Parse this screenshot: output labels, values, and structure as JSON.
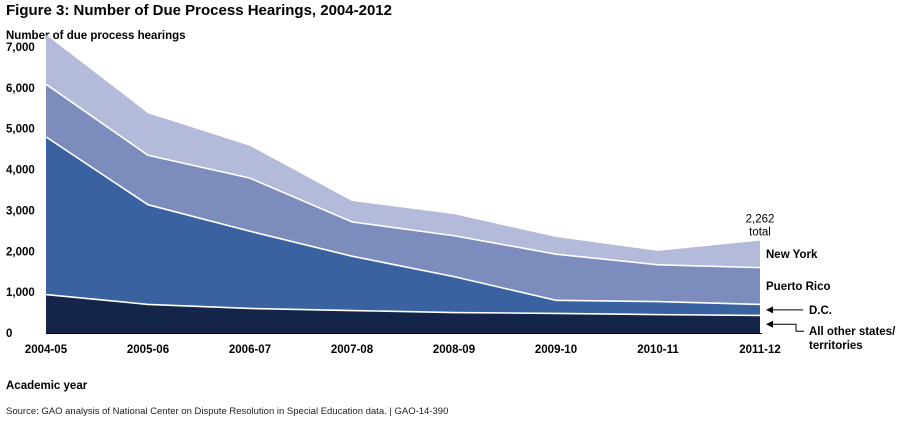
{
  "title": "Figure 3: Number of Due Process Hearings, 2004-2012",
  "source": "Source: GAO analysis of National Center on Dispute Resolution in Special Education data.  |  GAO-14-390",
  "colors": {
    "all_other": "#15254a",
    "dc": "#3a62a1",
    "puerto_rico": "#7b8cbd",
    "new_york": "#b4bad9",
    "boundary": "#ffffff",
    "arrow": "#000000"
  },
  "chart_data": {
    "type": "area",
    "stacked": true,
    "title": "Figure 3: Number of Due Process Hearings, 2004-2012",
    "ylabel": "Number of due process hearings",
    "xlabel": "Academic year",
    "ylim": [
      0,
      7000
    ],
    "yticks": [
      "0",
      "1,000",
      "2,000",
      "3,000",
      "4,000",
      "5,000",
      "6,000",
      "7,000"
    ],
    "ytick_values": [
      0,
      1000,
      2000,
      3000,
      4000,
      5000,
      6000,
      7000
    ],
    "categories": [
      "2004-05",
      "2005-06",
      "2006-07",
      "2007-08",
      "2008-09",
      "2009-10",
      "2010-11",
      "2011-12"
    ],
    "series": [
      {
        "name": "All other states/ territories",
        "name_lines": [
          "All other states/",
          "territories"
        ],
        "values": [
          940,
          700,
          600,
          550,
          500,
          480,
          450,
          430
        ]
      },
      {
        "name": "D.C.",
        "name_lines": [
          "D.C."
        ],
        "values": [
          3860,
          2440,
          1890,
          1330,
          880,
          320,
          320,
          270
        ]
      },
      {
        "name": "Puerto Rico",
        "name_lines": [
          "Puerto Rico"
        ],
        "values": [
          1290,
          1210,
          1300,
          840,
          1000,
          1130,
          900,
          900
        ]
      },
      {
        "name": "New York",
        "name_lines": [
          "New York"
        ],
        "values": [
          1210,
          1030,
          790,
          510,
          530,
          420,
          340,
          662
        ]
      }
    ],
    "annotation": {
      "value": "2,262",
      "text": "total"
    },
    "grid": false,
    "legend": "inline-right"
  }
}
